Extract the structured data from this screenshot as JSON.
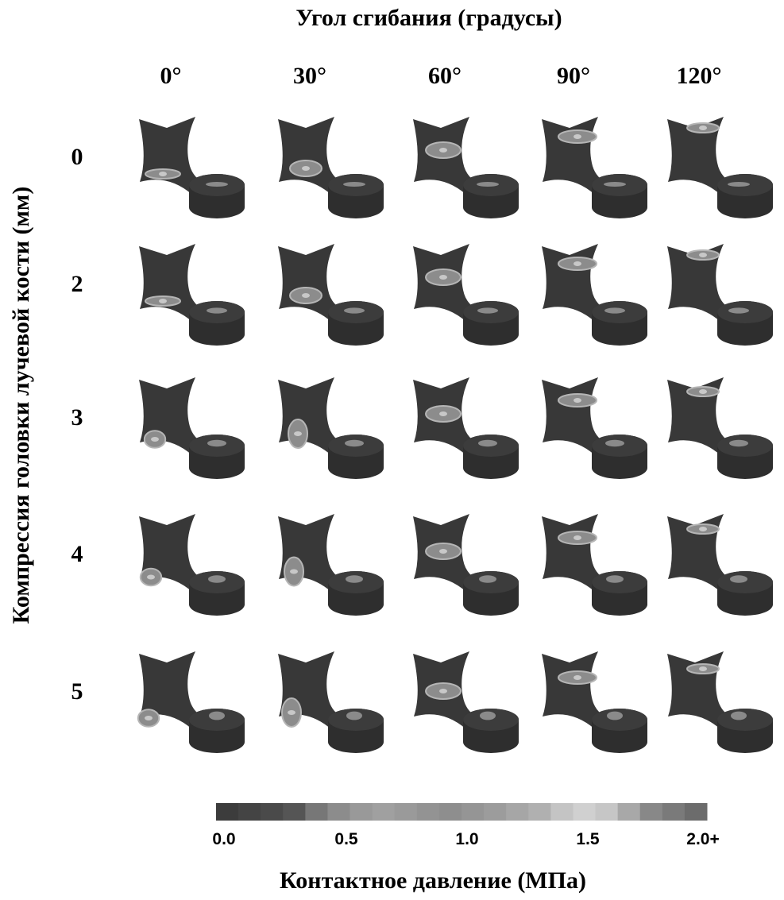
{
  "title": "Угол сгибания (градусы)",
  "columns": [
    "0°",
    "30°",
    "60°",
    "90°",
    "120°"
  ],
  "rows": [
    "0",
    "2",
    "3",
    "4",
    "5"
  ],
  "y_axis_label": "Компрессия головки лучевой кости (мм)",
  "colorbar": {
    "ticks": [
      "0.0",
      "0.5",
      "1.0",
      "1.5",
      "2.0+"
    ],
    "title": "Контактное давление (МПа)"
  }
}
